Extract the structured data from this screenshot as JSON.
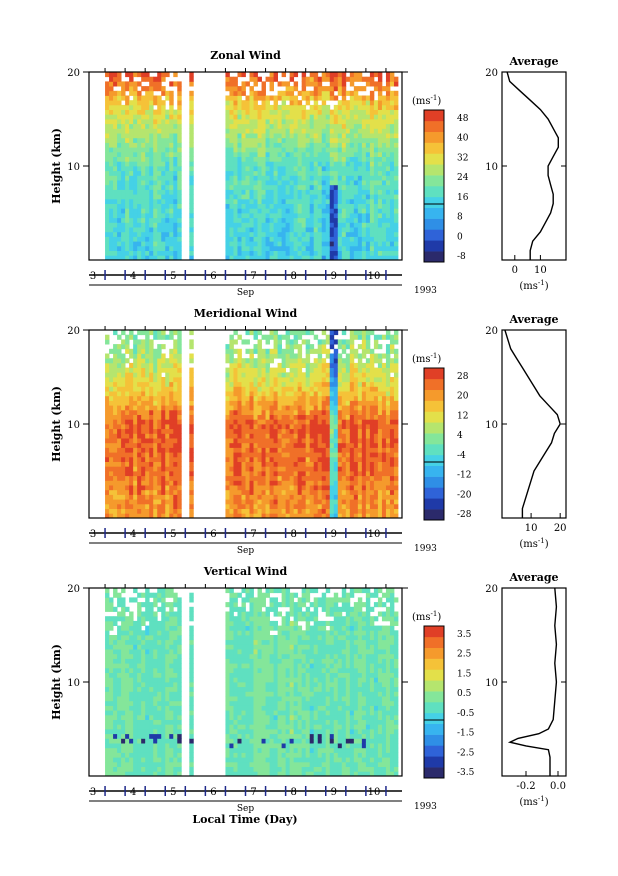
{
  "colors": {
    "scale": [
      "#2b2a6b",
      "#1f3aa8",
      "#2f63d8",
      "#2f8fe6",
      "#37b4ef",
      "#45d1e6",
      "#5fe0c0",
      "#84e69a",
      "#b5e56e",
      "#e3e04a",
      "#f5c238",
      "#f59a2c",
      "#f07028",
      "#e03f26"
    ],
    "blank": "#ffffff"
  },
  "footer": {
    "xlabel": "Local Time (Day)"
  },
  "chart_data": [
    {
      "type": "heatmap",
      "title": "Zonal Wind",
      "xlabel": "Sep",
      "ylabel": "Height (km)",
      "xlim": [
        2.6,
        10.4
      ],
      "ylim": [
        0,
        20
      ],
      "x_ticks": [
        "3",
        "4",
        "5",
        "6",
        "7",
        "8",
        "9",
        "10"
      ],
      "y_ticks": [
        "10",
        "20"
      ],
      "year": "1993",
      "colorbar": {
        "unit": "(ms-1)",
        "unit_base": "(ms",
        "unit_sup": "-1",
        "unit_close": ")",
        "labels": [
          "48",
          "40",
          "32",
          "24",
          "16",
          "8",
          "0",
          "-8"
        ],
        "range": [
          -8,
          48
        ]
      },
      "data_gaps": [
        [
          2.6,
          3.05
        ],
        [
          4.95,
          5.1
        ],
        [
          5.2,
          6.05
        ],
        [
          10.3,
          10.4
        ]
      ],
      "approx_field_profile": [
        [
          0,
          14
        ],
        [
          5,
          16
        ],
        [
          10,
          18
        ],
        [
          13,
          24
        ],
        [
          16,
          30
        ],
        [
          18,
          38
        ],
        [
          20,
          44
        ]
      ],
      "average_profile": {
        "title": "Average",
        "xlabel": "(ms-1)",
        "xlabel_base": "(ms",
        "xlabel_sup": "-1",
        "xlabel_close": ")",
        "x_ticks": [
          "0",
          "10"
        ],
        "xlim": [
          -5,
          20
        ],
        "y_ticks": [
          "10",
          "20"
        ],
        "values": [
          [
            20,
            -3
          ],
          [
            19,
            -2
          ],
          [
            18,
            2
          ],
          [
            17,
            6
          ],
          [
            16,
            10
          ],
          [
            15,
            13
          ],
          [
            14,
            15
          ],
          [
            13,
            17
          ],
          [
            12,
            17
          ],
          [
            11,
            15
          ],
          [
            10,
            13
          ],
          [
            9,
            13
          ],
          [
            8,
            14
          ],
          [
            7,
            15
          ],
          [
            6,
            15
          ],
          [
            5,
            14
          ],
          [
            4,
            12
          ],
          [
            3,
            10
          ],
          [
            2,
            7
          ],
          [
            1,
            6
          ],
          [
            0,
            6
          ]
        ]
      }
    },
    {
      "type": "heatmap",
      "title": "Meridional Wind",
      "xlabel": "Sep",
      "ylabel": "Height (km)",
      "xlim": [
        2.6,
        10.4
      ],
      "ylim": [
        0,
        20
      ],
      "x_ticks": [
        "3",
        "4",
        "5",
        "6",
        "7",
        "8",
        "9",
        "10"
      ],
      "y_ticks": [
        "10",
        "20"
      ],
      "year": "1993",
      "colorbar": {
        "unit": "(ms-1)",
        "unit_base": "(ms",
        "unit_sup": "-1",
        "unit_close": ")",
        "labels": [
          "28",
          "20",
          "12",
          "4",
          "-4",
          "-12",
          "-20",
          "-28"
        ],
        "range": [
          -28,
          28
        ]
      },
      "data_gaps": [
        [
          2.6,
          3.05
        ],
        [
          4.95,
          5.1
        ],
        [
          5.2,
          6.05
        ],
        [
          10.3,
          10.4
        ]
      ],
      "approx_field_profile": [
        [
          0,
          18
        ],
        [
          5,
          22
        ],
        [
          10,
          24
        ],
        [
          13,
          14
        ],
        [
          16,
          8
        ],
        [
          18,
          4
        ],
        [
          20,
          2
        ]
      ],
      "average_profile": {
        "title": "Average",
        "xlabel": "(ms-1)",
        "xlabel_base": "(ms",
        "xlabel_sup": "-1",
        "xlabel_close": ")",
        "x_ticks": [
          "10",
          "20"
        ],
        "xlim": [
          0,
          22
        ],
        "y_ticks": [
          "10",
          "20"
        ],
        "values": [
          [
            20,
            1
          ],
          [
            19,
            2
          ],
          [
            18,
            3
          ],
          [
            17,
            5
          ],
          [
            16,
            7
          ],
          [
            15,
            9
          ],
          [
            14,
            11
          ],
          [
            13,
            13
          ],
          [
            12,
            16
          ],
          [
            11,
            19
          ],
          [
            10,
            20
          ],
          [
            9,
            18
          ],
          [
            8,
            17
          ],
          [
            7,
            15
          ],
          [
            6,
            13
          ],
          [
            5,
            11
          ],
          [
            4,
            10
          ],
          [
            3,
            9
          ],
          [
            2,
            8
          ],
          [
            1,
            7
          ],
          [
            0,
            7
          ]
        ]
      }
    },
    {
      "type": "heatmap",
      "title": "Vertical Wind",
      "xlabel": "Sep",
      "ylabel": "Height (km)",
      "xlim": [
        2.6,
        10.4
      ],
      "ylim": [
        0,
        20
      ],
      "x_ticks": [
        "3",
        "4",
        "5",
        "6",
        "7",
        "8",
        "9",
        "10"
      ],
      "y_ticks": [
        "10",
        "20"
      ],
      "year": "1993",
      "colorbar": {
        "unit": "(ms-1)",
        "unit_base": "(ms",
        "unit_sup": "-1",
        "unit_close": ")",
        "labels": [
          "3.5",
          "2.5",
          "1.5",
          "0.5",
          "-0.5",
          "-1.5",
          "-2.5",
          "-3.5"
        ],
        "range": [
          -3.5,
          3.5
        ]
      },
      "data_gaps": [
        [
          2.6,
          3.05
        ],
        [
          4.95,
          5.1
        ],
        [
          5.2,
          6.05
        ],
        [
          10.3,
          10.4
        ]
      ],
      "approx_field_profile": [
        [
          0,
          0
        ],
        [
          10,
          0
        ],
        [
          20,
          0
        ]
      ],
      "average_profile": {
        "title": "Average",
        "xlabel": "(ms-1)",
        "xlabel_base": "(ms",
        "xlabel_sup": "-1",
        "xlabel_close": ")",
        "x_ticks": [
          "-0.2",
          "0.0"
        ],
        "xlim": [
          -0.35,
          0.05
        ],
        "y_ticks": [
          "10",
          "20"
        ],
        "values": [
          [
            20,
            -0.02
          ],
          [
            18,
            -0.01
          ],
          [
            16,
            -0.02
          ],
          [
            14,
            -0.01
          ],
          [
            12,
            -0.02
          ],
          [
            10,
            -0.01
          ],
          [
            8,
            -0.02
          ],
          [
            6,
            -0.03
          ],
          [
            5,
            -0.06
          ],
          [
            4.5,
            -0.12
          ],
          [
            4,
            -0.25
          ],
          [
            3.6,
            -0.3
          ],
          [
            3.2,
            -0.2
          ],
          [
            2.8,
            -0.06
          ],
          [
            2,
            -0.05
          ],
          [
            1,
            -0.05
          ],
          [
            0,
            -0.05
          ]
        ]
      }
    }
  ]
}
